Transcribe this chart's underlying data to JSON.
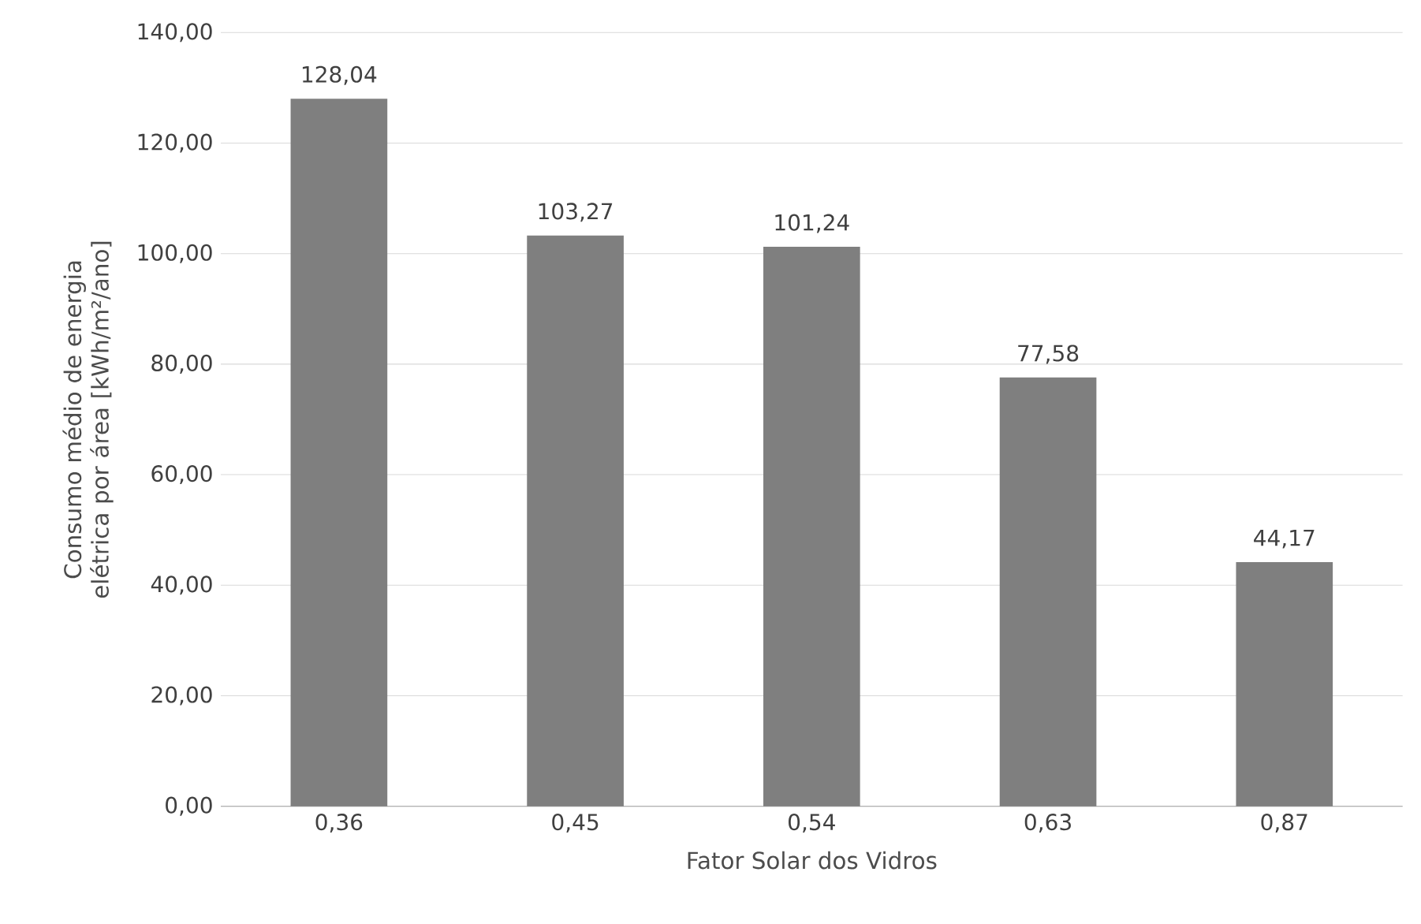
{
  "chart_data": {
    "type": "bar",
    "xlabel": "Fator Solar dos Vidros",
    "ylabel": "Consumo médio de energia elétrica por área [kWh/m²/ano]",
    "categories": [
      "0,36",
      "0,45",
      "0,54",
      "0,63",
      "0,87"
    ],
    "values": [
      128.04,
      103.27,
      101.24,
      77.58,
      44.17
    ],
    "value_labels": [
      "128,04",
      "103,27",
      "101,24",
      "77,58",
      "44,17"
    ],
    "color": "#7f7f7f",
    "ylim": [
      0,
      140
    ],
    "yticks": [
      {
        "value": 0,
        "label": "0,00"
      },
      {
        "value": 20,
        "label": "20,00"
      },
      {
        "value": 40,
        "label": "40,00"
      },
      {
        "value": 60,
        "label": "60,00"
      },
      {
        "value": 80,
        "label": "80,00"
      },
      {
        "value": 100,
        "label": "100,00"
      },
      {
        "value": 120,
        "label": "120,00"
      },
      {
        "value": 140,
        "label": "140,00"
      }
    ],
    "grid": "y"
  }
}
